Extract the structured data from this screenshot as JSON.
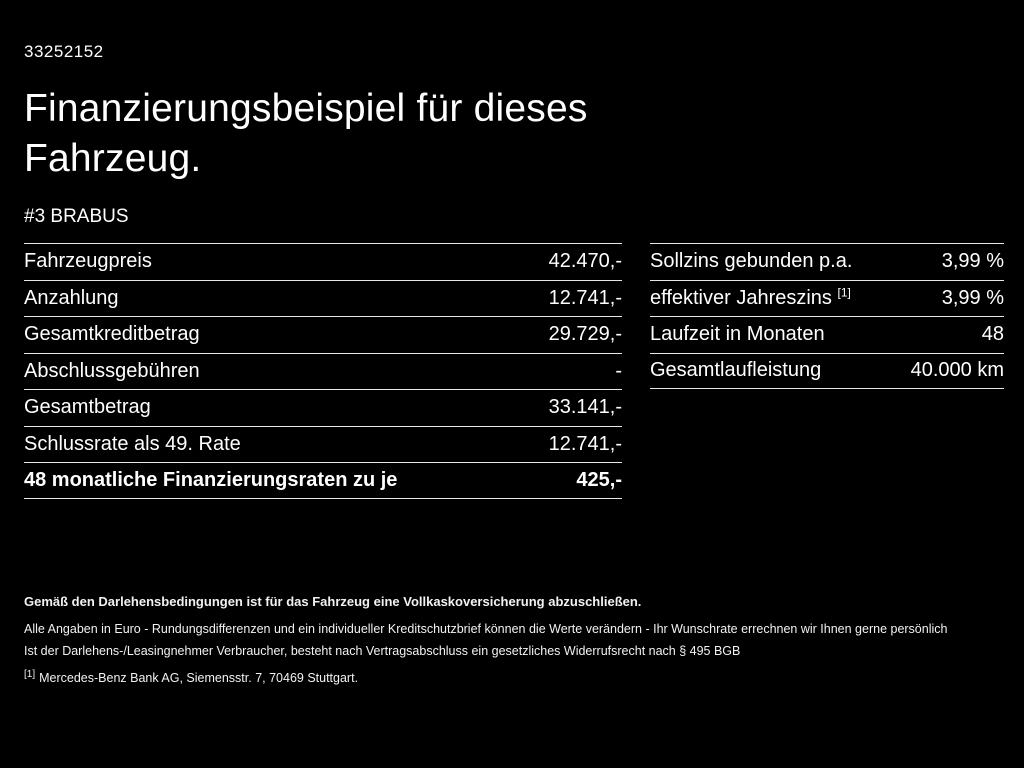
{
  "page": {
    "vehicle_id": "33252152",
    "title_line1": "Finanzierungsbeispiel für dieses",
    "title_line2": "Fahrzeug.",
    "model": "#3 BRABUS"
  },
  "left_table": {
    "rows": [
      {
        "label": "Fahrzeugpreis",
        "value": "42.470,-"
      },
      {
        "label": "Anzahlung",
        "value": "12.741,-"
      },
      {
        "label": "Gesamtkreditbetrag",
        "value": "29.729,-"
      },
      {
        "label": "Abschlussgebühren",
        "value": "-"
      },
      {
        "label": "Gesamtbetrag",
        "value": "33.141,-"
      },
      {
        "label": "Schlussrate als 49. Rate",
        "value": "12.741,-"
      },
      {
        "label": "48 monatliche Finanzierungsraten zu je",
        "value": "425,-"
      }
    ]
  },
  "right_table": {
    "rows": [
      {
        "label": "Sollzins gebunden p.a.",
        "sup": "",
        "value": "3,99 %"
      },
      {
        "label": "effektiver Jahreszins ",
        "sup": "[1]",
        "value": "3,99 %"
      },
      {
        "label": "Laufzeit in Monaten",
        "sup": "",
        "value": "48"
      },
      {
        "label": "Gesamtlaufleistung",
        "sup": "",
        "value": "40.000 km"
      }
    ]
  },
  "footer": {
    "line1": "Gemäß den Darlehensbedingungen ist für das Fahrzeug eine Vollkaskoversicherung abzuschließen.",
    "line2": "Alle Angaben in Euro - Rundungsdifferenzen und ein individueller Kreditschutzbrief können die Werte verändern - Ihr Wunschrate errechnen wir Ihnen gerne persönlich",
    "line3": "Ist der Darlehens-/Leasingnehmer Verbraucher, besteht nach Vertragsabschluss ein gesetzliches Widerrufsrecht nach § 495 BGB",
    "footnote_marker": "[1]",
    "footnote_text": "Mercedes-Benz Bank AG, Siemensstr. 7, 70469 Stuttgart."
  }
}
